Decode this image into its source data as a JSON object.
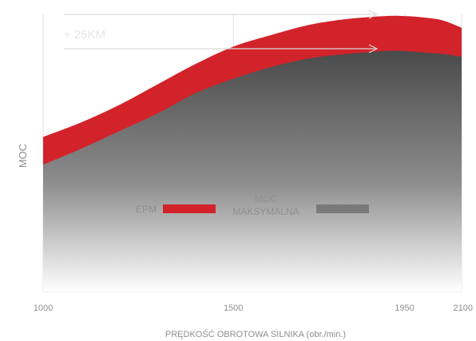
{
  "chart_data": {
    "type": "area",
    "xlabel": "PRĘDKOŚĆ OBROTOWA SILNIKA (obr./min.)",
    "ylabel": "MOC",
    "x_ticks": [
      "1000",
      "1500",
      "1950",
      "2100"
    ],
    "annotation": "+ 25KM",
    "legend_placement": "center",
    "colors": {
      "epm": "#d2232a",
      "base": "#707070",
      "moc_swatch": "#7a7a7a"
    },
    "series": [
      {
        "name": "EPM",
        "x": [
          1000,
          1100,
          1200,
          1300,
          1400,
          1500,
          1600,
          1700,
          1800,
          1900,
          1950,
          2000,
          2050,
          2100
        ],
        "y": [
          53,
          58,
          64,
          71,
          78,
          84,
          88,
          91.5,
          93.5,
          94.5,
          94.5,
          94,
          93,
          90.5
        ]
      },
      {
        "name": "MOC MAKSYMALNA",
        "x": [
          1000,
          1100,
          1200,
          1300,
          1400,
          1500,
          1600,
          1700,
          1800,
          1900,
          1950,
          2000,
          2050,
          2100
        ],
        "y": [
          43.5,
          49,
          55,
          61,
          68,
          73,
          77,
          80,
          81.5,
          82.5,
          82.5,
          82,
          81.5,
          80.5
        ]
      }
    ],
    "legend": [
      {
        "label": "EPM"
      },
      {
        "label": "MOC\nMAKSYMALNA"
      }
    ]
  }
}
